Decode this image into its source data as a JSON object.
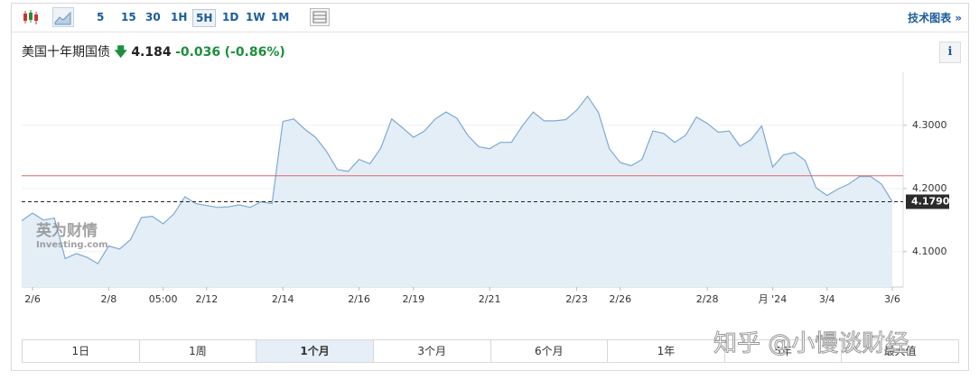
{
  "toolbar": {
    "intervals": [
      "5",
      "15",
      "30",
      "1H",
      "5H",
      "1D",
      "1W",
      "1M"
    ],
    "selected_interval": 4,
    "link": "技术图表 »"
  },
  "header": {
    "direction": "down",
    "price": "4.184",
    "change": "-0.036",
    "change_pct": "(-0.86%)",
    "info": "i"
  },
  "chart_data": {
    "type": "line",
    "title": "美国十年期国债",
    "categories": [
      null,
      "2/6",
      null,
      null,
      null,
      null,
      null,
      null,
      "2/8",
      null,
      null,
      null,
      null,
      "05:00",
      null,
      null,
      null,
      "2/12",
      null,
      null,
      null,
      null,
      null,
      null,
      "2/14",
      null,
      null,
      null,
      null,
      null,
      null,
      "2/16",
      null,
      null,
      null,
      null,
      "2/19",
      null,
      null,
      null,
      null,
      null,
      null,
      "2/21",
      null,
      null,
      null,
      null,
      null,
      null,
      null,
      "2/23",
      null,
      null,
      null,
      "2/26",
      null,
      null,
      null,
      null,
      null,
      null,
      null,
      "2/28",
      null,
      null,
      null,
      null,
      null,
      "月 '24",
      null,
      null,
      null,
      null,
      "3/4",
      null,
      null,
      null,
      null,
      null,
      "3/6"
    ],
    "series": [
      {
        "color": "#7fa9d3",
        "fill": "#e4eef7",
        "values": [
          4.149,
          4.161,
          4.15,
          4.153,
          4.089,
          4.097,
          4.091,
          4.081,
          4.109,
          4.104,
          4.119,
          4.154,
          4.156,
          4.144,
          4.16,
          4.187,
          4.176,
          4.173,
          4.17,
          4.171,
          4.174,
          4.17,
          4.179,
          4.176,
          4.306,
          4.31,
          4.294,
          4.281,
          4.259,
          4.23,
          4.227,
          4.246,
          4.239,
          4.264,
          4.31,
          4.296,
          4.281,
          4.291,
          4.31,
          4.321,
          4.311,
          4.284,
          4.266,
          4.263,
          4.273,
          4.273,
          4.299,
          4.321,
          4.307,
          4.307,
          4.309,
          4.324,
          4.346,
          4.32,
          4.263,
          4.241,
          4.236,
          4.246,
          4.291,
          4.287,
          4.273,
          4.284,
          4.313,
          4.303,
          4.289,
          4.291,
          4.267,
          4.277,
          4.299,
          4.234,
          4.253,
          4.257,
          4.244,
          4.201,
          4.189,
          4.199,
          4.207,
          4.219,
          4.219,
          4.207,
          4.179
        ]
      }
    ],
    "ylim": [
      4.044,
      4.384
    ],
    "yticks": [
      {
        "value": 4.1,
        "label": "4.1000"
      },
      {
        "value": 4.2,
        "label": "4.2000"
      },
      {
        "value": 4.3,
        "label": "4.3000"
      }
    ],
    "grid": true,
    "reference_line": {
      "value": 4.22,
      "color": "#e06666"
    },
    "last_price": {
      "value": 4.179,
      "label": "4.1790"
    },
    "logo": {
      "name": "英为财情",
      "site": "Investing.com"
    }
  },
  "range_tabs": {
    "items": [
      "1日",
      "1周",
      "1个月",
      "3个月",
      "6个月",
      "1年",
      "5年",
      "最大值"
    ],
    "selected": 2
  },
  "watermark": "知乎 @小慢谈财经"
}
